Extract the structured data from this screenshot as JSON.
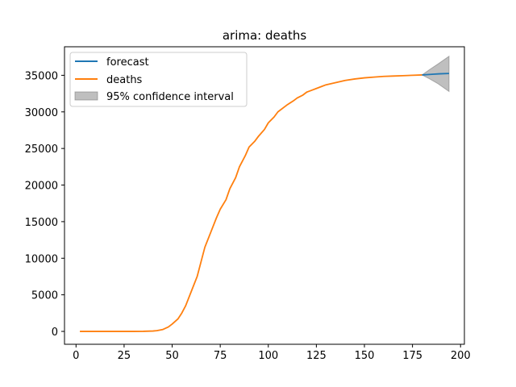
{
  "chart_data": {
    "type": "line",
    "title": "arima: deaths",
    "xlabel": "",
    "ylabel": "",
    "xlim": [
      -6,
      202
    ],
    "ylim": [
      -1759,
      38900
    ],
    "xticks": [
      0,
      25,
      50,
      75,
      100,
      125,
      150,
      175,
      200
    ],
    "yticks": [
      0,
      5000,
      10000,
      15000,
      20000,
      25000,
      30000,
      35000
    ],
    "grid": false,
    "legend_position": "top-left",
    "legend": [
      "forecast",
      "deaths",
      "95% confidence interval"
    ],
    "series": [
      {
        "name": "forecast",
        "color": "#1f77b4",
        "x": [
          180,
          183,
          186,
          189,
          194
        ],
        "y": [
          35050,
          35100,
          35150,
          35200,
          35250
        ]
      },
      {
        "name": "deaths",
        "color": "#ff7f0e",
        "x": [
          2,
          10,
          20,
          30,
          35,
          40,
          42,
          45,
          48,
          50,
          53,
          55,
          57,
          60,
          63,
          65,
          67,
          70,
          73,
          75,
          78,
          80,
          83,
          85,
          88,
          90,
          93,
          95,
          98,
          100,
          103,
          105,
          108,
          110,
          113,
          115,
          118,
          120,
          123,
          125,
          128,
          130,
          135,
          140,
          145,
          150,
          155,
          160,
          165,
          170,
          175,
          180
        ],
        "y": [
          0,
          0,
          0,
          0,
          10,
          50,
          100,
          250,
          600,
          1000,
          1700,
          2500,
          3500,
          5500,
          7500,
          9500,
          11500,
          13500,
          15500,
          16700,
          18000,
          19500,
          21000,
          22500,
          24000,
          25200,
          26000,
          26700,
          27600,
          28500,
          29300,
          30000,
          30600,
          31000,
          31500,
          31900,
          32300,
          32700,
          33000,
          33200,
          33500,
          33700,
          34000,
          34300,
          34500,
          34650,
          34750,
          34850,
          34900,
          34950,
          35000,
          35050
        ]
      }
    ],
    "confidence_interval": {
      "name": "95% confidence interval",
      "color": "#808080",
      "x": [
        180,
        184,
        188,
        194
      ],
      "lower": [
        35050,
        34500,
        33900,
        32800
      ],
      "upper": [
        35050,
        35800,
        36500,
        37600
      ]
    }
  }
}
